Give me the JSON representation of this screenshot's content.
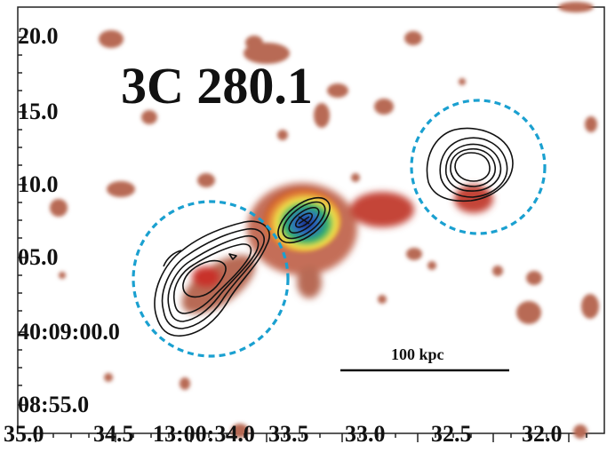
{
  "image": {
    "title": "3C 280.1",
    "y_ticks": [
      "20.0",
      "15.0",
      "10.0",
      "05.0",
      "40:09:00.0",
      "08:55.0"
    ],
    "x_ticks": [
      "35.0",
      "34.5",
      "13:00:34.0",
      "33.5",
      "33.0",
      "32.5",
      "32.0"
    ],
    "scale_bar_label": "100 kpc",
    "colors": {
      "blob": "#b86a55",
      "blob_dark": "#a43424",
      "core_yellow": "#f0e04a",
      "core_green": "#2faf6a",
      "core_blue": "#2040a0",
      "circle": "#1aa0d0",
      "contour": "#111111"
    }
  }
}
